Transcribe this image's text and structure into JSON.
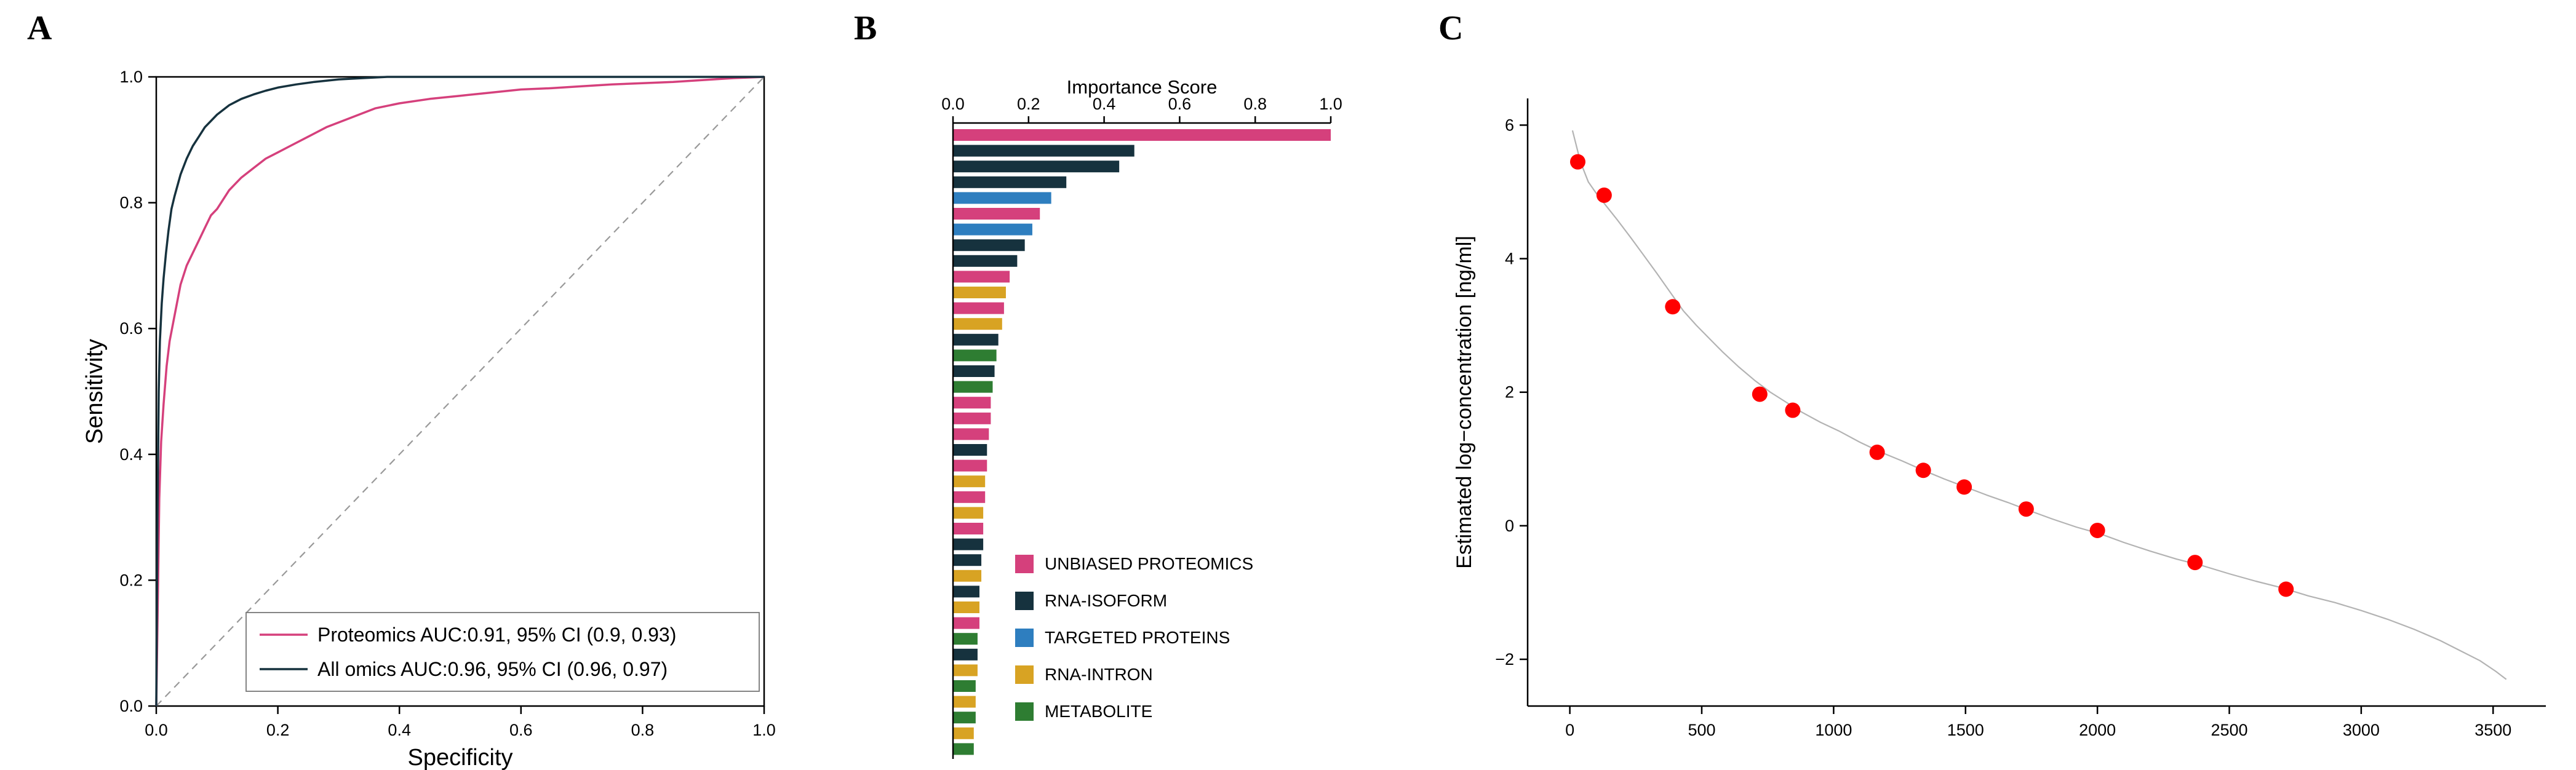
{
  "figure": {
    "panel_labels": {
      "a": "A",
      "b": "B",
      "c": "C"
    },
    "background": "#ffffff"
  },
  "chart_data": [
    {
      "panel": "A",
      "type": "line",
      "kind": "roc-curve",
      "title": "",
      "xlabel": "Specificity",
      "ylabel": "Sensitivity",
      "xlim": [
        0,
        1
      ],
      "ylim": [
        0,
        1
      ],
      "xticks": [
        0,
        0.2,
        0.4,
        0.6,
        0.8,
        1.0
      ],
      "yticks": [
        0,
        0.2,
        0.4,
        0.6,
        0.8,
        1.0
      ],
      "grid": false,
      "legend_position": "lower right",
      "diagonal_reference": {
        "style": "dashed",
        "color": "#999999"
      },
      "series": [
        {
          "name": "Proteomics AUC:0.91, 95% CI (0.9, 0.93)",
          "color": "#d5407c",
          "points": [
            [
              0,
              0
            ],
            [
              0.003,
              0.2
            ],
            [
              0.005,
              0.33
            ],
            [
              0.008,
              0.42
            ],
            [
              0.012,
              0.48
            ],
            [
              0.017,
              0.54
            ],
            [
              0.022,
              0.58
            ],
            [
              0.03,
              0.62
            ],
            [
              0.04,
              0.67
            ],
            [
              0.05,
              0.7
            ],
            [
              0.06,
              0.72
            ],
            [
              0.07,
              0.74
            ],
            [
              0.08,
              0.76
            ],
            [
              0.09,
              0.78
            ],
            [
              0.1,
              0.79
            ],
            [
              0.12,
              0.82
            ],
            [
              0.14,
              0.84
            ],
            [
              0.16,
              0.855
            ],
            [
              0.18,
              0.87
            ],
            [
              0.2,
              0.88
            ],
            [
              0.22,
              0.89
            ],
            [
              0.25,
              0.905
            ],
            [
              0.28,
              0.92
            ],
            [
              0.32,
              0.935
            ],
            [
              0.36,
              0.95
            ],
            [
              0.4,
              0.958
            ],
            [
              0.45,
              0.965
            ],
            [
              0.5,
              0.97
            ],
            [
              0.55,
              0.975
            ],
            [
              0.6,
              0.98
            ],
            [
              0.65,
              0.982
            ],
            [
              0.7,
              0.985
            ],
            [
              0.75,
              0.988
            ],
            [
              0.8,
              0.99
            ],
            [
              0.85,
              0.992
            ],
            [
              0.9,
              0.995
            ],
            [
              0.95,
              0.998
            ],
            [
              1,
              1
            ]
          ]
        },
        {
          "name": "All omics AUC:0.96, 95% CI (0.96, 0.97)",
          "color": "#16323e",
          "points": [
            [
              0,
              0
            ],
            [
              0.002,
              0.3
            ],
            [
              0.004,
              0.5
            ],
            [
              0.006,
              0.58
            ],
            [
              0.009,
              0.64
            ],
            [
              0.012,
              0.68
            ],
            [
              0.016,
              0.72
            ],
            [
              0.02,
              0.755
            ],
            [
              0.025,
              0.79
            ],
            [
              0.03,
              0.81
            ],
            [
              0.04,
              0.845
            ],
            [
              0.05,
              0.87
            ],
            [
              0.06,
              0.89
            ],
            [
              0.07,
              0.905
            ],
            [
              0.08,
              0.92
            ],
            [
              0.09,
              0.93
            ],
            [
              0.1,
              0.94
            ],
            [
              0.12,
              0.955
            ],
            [
              0.14,
              0.965
            ],
            [
              0.16,
              0.972
            ],
            [
              0.18,
              0.978
            ],
            [
              0.2,
              0.983
            ],
            [
              0.23,
              0.988
            ],
            [
              0.26,
              0.992
            ],
            [
              0.3,
              0.996
            ],
            [
              0.34,
              0.998
            ],
            [
              0.38,
              1
            ],
            [
              1,
              1
            ]
          ]
        }
      ]
    },
    {
      "panel": "B",
      "type": "bar",
      "orientation": "horizontal",
      "axis_position": "top",
      "title": "Importance Score",
      "xlabel": "Importance Score",
      "xlim": [
        0,
        1
      ],
      "xticks": [
        0,
        0.2,
        0.4,
        0.6,
        0.8,
        1.0
      ],
      "bars": [
        {
          "value": 1.0,
          "category": "UNBIASED PROTEOMICS"
        },
        {
          "value": 0.48,
          "category": "RNA-ISOFORM"
        },
        {
          "value": 0.44,
          "category": "RNA-ISOFORM"
        },
        {
          "value": 0.3,
          "category": "RNA-ISOFORM"
        },
        {
          "value": 0.26,
          "category": "TARGETED PROTEINS"
        },
        {
          "value": 0.23,
          "category": "UNBIASED PROTEOMICS"
        },
        {
          "value": 0.21,
          "category": "TARGETED PROTEINS"
        },
        {
          "value": 0.19,
          "category": "RNA-ISOFORM"
        },
        {
          "value": 0.17,
          "category": "RNA-ISOFORM"
        },
        {
          "value": 0.15,
          "category": "UNBIASED PROTEOMICS"
        },
        {
          "value": 0.14,
          "category": "RNA-INTRON"
        },
        {
          "value": 0.135,
          "category": "UNBIASED PROTEOMICS"
        },
        {
          "value": 0.13,
          "category": "RNA-INTRON"
        },
        {
          "value": 0.12,
          "category": "RNA-ISOFORM"
        },
        {
          "value": 0.115,
          "category": "METABOLITE"
        },
        {
          "value": 0.11,
          "category": "RNA-ISOFORM"
        },
        {
          "value": 0.105,
          "category": "METABOLITE"
        },
        {
          "value": 0.1,
          "category": "UNBIASED PROTEOMICS"
        },
        {
          "value": 0.1,
          "category": "UNBIASED PROTEOMICS"
        },
        {
          "value": 0.095,
          "category": "UNBIASED PROTEOMICS"
        },
        {
          "value": 0.09,
          "category": "RNA-ISOFORM"
        },
        {
          "value": 0.09,
          "category": "UNBIASED PROTEOMICS"
        },
        {
          "value": 0.085,
          "category": "RNA-INTRON"
        },
        {
          "value": 0.085,
          "category": "UNBIASED PROTEOMICS"
        },
        {
          "value": 0.08,
          "category": "RNA-INTRON"
        },
        {
          "value": 0.08,
          "category": "UNBIASED PROTEOMICS"
        },
        {
          "value": 0.08,
          "category": "RNA-ISOFORM"
        },
        {
          "value": 0.075,
          "category": "RNA-ISOFORM"
        },
        {
          "value": 0.075,
          "category": "RNA-INTRON"
        },
        {
          "value": 0.07,
          "category": "RNA-ISOFORM"
        },
        {
          "value": 0.07,
          "category": "RNA-INTRON"
        },
        {
          "value": 0.07,
          "category": "UNBIASED PROTEOMICS"
        },
        {
          "value": 0.065,
          "category": "METABOLITE"
        },
        {
          "value": 0.065,
          "category": "RNA-ISOFORM"
        },
        {
          "value": 0.065,
          "category": "RNA-INTRON"
        },
        {
          "value": 0.06,
          "category": "METABOLITE"
        },
        {
          "value": 0.06,
          "category": "RNA-INTRON"
        },
        {
          "value": 0.06,
          "category": "METABOLITE"
        },
        {
          "value": 0.055,
          "category": "RNA-INTRON"
        },
        {
          "value": 0.055,
          "category": "METABOLITE"
        }
      ],
      "legend": [
        {
          "label": "UNBIASED PROTEOMICS",
          "color": "#d5407c"
        },
        {
          "label": "RNA-ISOFORM",
          "color": "#16323e"
        },
        {
          "label": "TARGETED PROTEINS",
          "color": "#2e7ebf"
        },
        {
          "label": "RNA-INTRON",
          "color": "#d8a323"
        },
        {
          "label": "METABOLITE",
          "color": "#2e7d32"
        }
      ]
    },
    {
      "panel": "C",
      "type": "scatter",
      "title": "",
      "xlabel": "",
      "ylabel": "Estimated log−concentration [ng/ml]",
      "xlim": [
        -160,
        3700
      ],
      "ylim": [
        -2.7,
        6.4
      ],
      "xticks": [
        0,
        500,
        1000,
        1500,
        2000,
        2500,
        3000,
        3500
      ],
      "yticks": [
        -2,
        0,
        2,
        4,
        6
      ],
      "curve_color": "#b3b3b3",
      "point_color": "#ff0000",
      "curve": [
        [
          10,
          5.92
        ],
        [
          40,
          5.45
        ],
        [
          70,
          5.15
        ],
        [
          100,
          4.98
        ],
        [
          140,
          4.78
        ],
        [
          180,
          4.58
        ],
        [
          230,
          4.32
        ],
        [
          280,
          4.05
        ],
        [
          330,
          3.78
        ],
        [
          380,
          3.5
        ],
        [
          430,
          3.22
        ],
        [
          480,
          3.0
        ],
        [
          530,
          2.8
        ],
        [
          580,
          2.6
        ],
        [
          640,
          2.38
        ],
        [
          700,
          2.18
        ],
        [
          760,
          2.0
        ],
        [
          820,
          1.85
        ],
        [
          880,
          1.7
        ],
        [
          950,
          1.55
        ],
        [
          1020,
          1.42
        ],
        [
          1100,
          1.25
        ],
        [
          1180,
          1.1
        ],
        [
          1260,
          0.97
        ],
        [
          1340,
          0.83
        ],
        [
          1420,
          0.7
        ],
        [
          1500,
          0.58
        ],
        [
          1580,
          0.46
        ],
        [
          1660,
          0.35
        ],
        [
          1740,
          0.23
        ],
        [
          1830,
          0.1
        ],
        [
          1920,
          -0.02
        ],
        [
          2010,
          -0.12
        ],
        [
          2100,
          -0.25
        ],
        [
          2200,
          -0.38
        ],
        [
          2300,
          -0.5
        ],
        [
          2400,
          -0.6
        ],
        [
          2500,
          -0.72
        ],
        [
          2600,
          -0.83
        ],
        [
          2700,
          -0.93
        ],
        [
          2800,
          -1.05
        ],
        [
          2900,
          -1.15
        ],
        [
          3000,
          -1.27
        ],
        [
          3100,
          -1.4
        ],
        [
          3200,
          -1.55
        ],
        [
          3300,
          -1.72
        ],
        [
          3380,
          -1.88
        ],
        [
          3450,
          -2.02
        ],
        [
          3510,
          -2.18
        ],
        [
          3550,
          -2.3
        ]
      ],
      "points": [
        [
          30,
          5.45
        ],
        [
          130,
          4.95
        ],
        [
          390,
          3.28
        ],
        [
          720,
          1.97
        ],
        [
          845,
          1.73
        ],
        [
          1165,
          1.1
        ],
        [
          1340,
          0.83
        ],
        [
          1495,
          0.58
        ],
        [
          1730,
          0.25
        ],
        [
          2000,
          -0.07
        ],
        [
          2370,
          -0.55
        ],
        [
          2715,
          -0.95
        ]
      ]
    }
  ]
}
